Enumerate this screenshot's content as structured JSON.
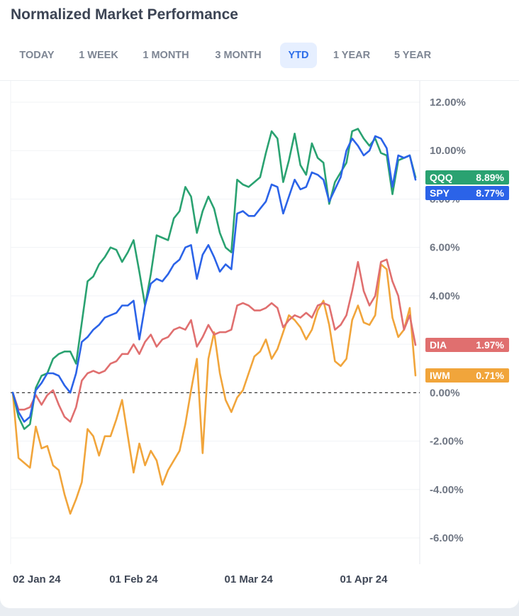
{
  "header": {
    "title": "Normalized Market Performance"
  },
  "tabs": [
    {
      "label": "TODAY",
      "active": false
    },
    {
      "label": "1 WEEK",
      "active": false
    },
    {
      "label": "1 MONTH",
      "active": false
    },
    {
      "label": "3 MONTH",
      "active": false
    },
    {
      "label": "YTD",
      "active": true
    },
    {
      "label": "1 YEAR",
      "active": false
    },
    {
      "label": "5 YEAR",
      "active": false
    }
  ],
  "badges": [
    {
      "symbol": "QQQ",
      "value": "8.89%",
      "color": "#2aa271"
    },
    {
      "symbol": "SPY",
      "value": "8.77%",
      "color": "#2b63e8"
    },
    {
      "symbol": "DIA",
      "value": "1.97%",
      "color": "#e06f6f"
    },
    {
      "symbol": "IWM",
      "value": "0.71%",
      "color": "#f1a53b"
    }
  ],
  "chart_data": {
    "type": "line",
    "ylim": [
      -6,
      12
    ],
    "y_ticks": [
      "12.00%",
      "10.00%",
      "8.00%",
      "6.00%",
      "4.00%",
      "2.00%",
      "0.00%",
      "-2.00%",
      "-4.00%",
      "-6.00%"
    ],
    "y_tick_values": [
      12,
      10,
      8,
      6,
      4,
      2,
      0,
      -2,
      -4,
      -6
    ],
    "x_ticks": [
      "02 Jan 24",
      "01 Feb 24",
      "01 Mar 24",
      "01 Apr 24"
    ],
    "x_tick_index": [
      0,
      21,
      41,
      61
    ],
    "baseline": 0,
    "grid": true,
    "series": [
      {
        "name": "QQQ",
        "color": "#2aa271",
        "values": [
          0,
          -1.0,
          -1.5,
          -1.3,
          0.2,
          0.7,
          0.8,
          1.4,
          1.6,
          1.7,
          1.7,
          1.2,
          2.9,
          4.6,
          4.8,
          5.3,
          5.6,
          6.0,
          5.9,
          5.4,
          5.8,
          6.3,
          5.0,
          3.6,
          4.9,
          6.5,
          6.4,
          6.3,
          7.2,
          7.5,
          8.5,
          8.1,
          6.6,
          7.5,
          8.1,
          7.6,
          6.6,
          6.0,
          5.8,
          8.8,
          8.6,
          8.5,
          8.7,
          8.9,
          9.9,
          10.8,
          10.5,
          8.7,
          9.6,
          10.7,
          9.4,
          9.0,
          10.3,
          9.7,
          9.5,
          7.8,
          8.7,
          9.1,
          9.5,
          10.8,
          10.9,
          10.5,
          10.2,
          10.5,
          9.9,
          9.8,
          8.2,
          9.6,
          9.7,
          9.8,
          8.9
        ]
      },
      {
        "name": "SPY",
        "color": "#2b63e8",
        "values": [
          0,
          -0.8,
          -1.2,
          -1.0,
          0.1,
          0.4,
          0.8,
          0.8,
          0.7,
          0.3,
          0.0,
          0.8,
          2.1,
          2.3,
          2.6,
          2.8,
          3.1,
          3.2,
          3.3,
          3.6,
          3.6,
          3.8,
          2.2,
          3.6,
          4.5,
          4.7,
          4.6,
          4.9,
          5.3,
          5.5,
          6.0,
          6.1,
          4.7,
          5.7,
          6.1,
          5.6,
          5.0,
          5.3,
          5.1,
          7.4,
          7.5,
          7.3,
          7.3,
          7.6,
          7.9,
          8.6,
          8.5,
          7.4,
          8.1,
          8.8,
          8.4,
          8.5,
          9.1,
          9.0,
          8.8,
          7.9,
          8.4,
          8.9,
          10.0,
          10.5,
          10.2,
          9.8,
          10.0,
          10.6,
          10.5,
          10.1,
          8.5,
          9.8,
          9.7,
          9.8,
          8.8
        ]
      },
      {
        "name": "DIA",
        "color": "#e06f6f",
        "values": [
          0,
          -0.7,
          -0.7,
          -0.6,
          -0.1,
          -0.5,
          -0.1,
          0.1,
          -0.5,
          -1.0,
          -1.2,
          -0.6,
          0.5,
          0.8,
          0.9,
          0.8,
          0.9,
          1.2,
          1.3,
          1.6,
          1.6,
          2.0,
          1.6,
          2.1,
          2.4,
          1.9,
          2.2,
          2.3,
          2.6,
          2.7,
          2.6,
          3.0,
          1.9,
          2.3,
          2.8,
          2.4,
          2.5,
          2.5,
          2.6,
          3.6,
          3.7,
          3.6,
          3.4,
          3.4,
          3.5,
          3.7,
          3.5,
          2.7,
          3.0,
          3.2,
          3.1,
          3.3,
          3.1,
          3.6,
          3.7,
          3.6,
          2.6,
          2.8,
          3.2,
          4.2,
          5.4,
          4.2,
          3.6,
          4.0,
          5.4,
          5.5,
          4.6,
          4.0,
          2.6,
          3.2,
          1.97
        ]
      },
      {
        "name": "IWM",
        "color": "#f1a53b",
        "values": [
          0,
          -2.7,
          -2.9,
          -3.1,
          -1.4,
          -2.3,
          -2.2,
          -3.0,
          -3.2,
          -4.2,
          -5.0,
          -4.4,
          -3.7,
          -1.5,
          -1.8,
          -2.6,
          -1.8,
          -1.8,
          -1.1,
          -0.3,
          -1.8,
          -3.3,
          -2.1,
          -3.0,
          -2.4,
          -2.8,
          -3.8,
          -3.2,
          -2.8,
          -2.4,
          -1.3,
          0.1,
          1.4,
          -2.5,
          1.4,
          2.5,
          0.8,
          -0.3,
          -0.8,
          -0.2,
          0.1,
          0.8,
          1.5,
          1.7,
          2.2,
          1.4,
          1.8,
          2.5,
          3.2,
          3.0,
          2.7,
          2.2,
          2.6,
          3.4,
          3.8,
          2.8,
          1.3,
          1.1,
          1.4,
          3.0,
          3.6,
          2.9,
          2.8,
          3.2,
          5.3,
          5.1,
          3.1,
          2.3,
          2.6,
          3.5,
          0.71
        ]
      }
    ]
  }
}
